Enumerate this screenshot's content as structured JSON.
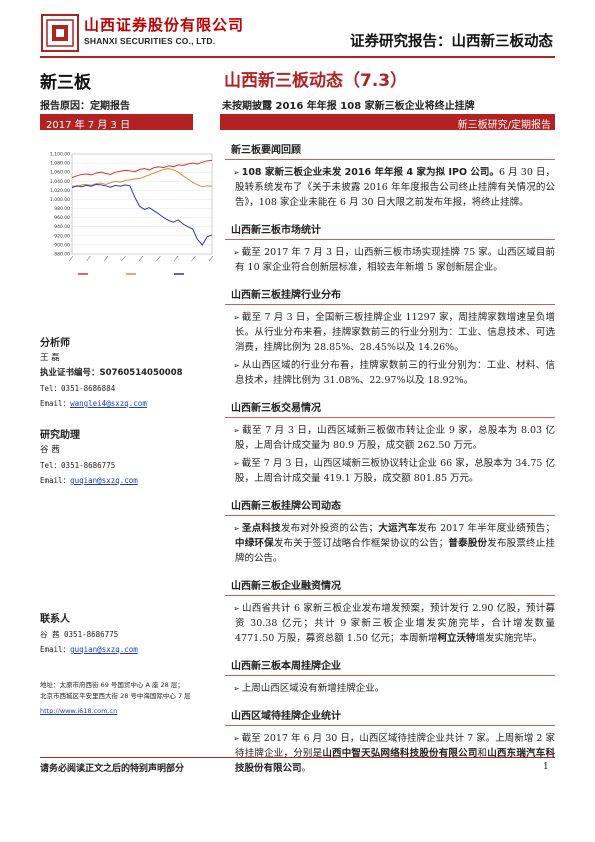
{
  "header": {
    "company_cn": "山西证券股份有限公司",
    "company_en": "SHANXI SECURITIES CO., LTD.",
    "report_series": "证券研究报告：山西新三板动态",
    "logo_icon": "company-seal-icon",
    "brand_color": "#b22222"
  },
  "left": {
    "section": "新三板",
    "reason": "报告原因：定期报告",
    "date": "2017 年 7 月 3 日",
    "analyst_title": "分析师",
    "analyst_name": "王 磊",
    "cert_label": "执业证书编号：",
    "cert_no": "S0760514050008",
    "analyst_tel": "Tel：0351-8686884",
    "analyst_email_label": "Email：",
    "analyst_email": "wanglei4@sxzq.com",
    "assistant_title": "研究助理",
    "assistant_name": "谷 茜",
    "assistant_tel": "Tel：0351-8686775",
    "assistant_email_label": "Email：",
    "assistant_email": "guqian@sxzq.com",
    "contact_title": "联系人",
    "contact_tel": "谷 茜 0351-8686775",
    "contact_email_label": "Email：",
    "contact_email": "guqian@sxzq.com",
    "address1": "地址：太原市府西街 69 号国贸中心 A 座 28 层；",
    "address2": "北京市西城区平安里西大街 28 号中海国际中心 7 层",
    "website": "http://www.i618.com.cn"
  },
  "chart_data": {
    "type": "line",
    "y_ticks": [
      "1,100.00",
      "1,080.00",
      "1,060.00",
      "1,040.00",
      "1,020.00",
      "1,000.00",
      "980.00",
      "960.00",
      "940.00",
      "920.00",
      "900.00",
      "880.00"
    ],
    "series": [
      {
        "color": "#e03030",
        "values": [
          1048,
          1052,
          1055,
          1056,
          1054,
          1058,
          1060,
          1057,
          1055,
          1060,
          1062,
          1064,
          1063,
          1061,
          1066,
          1068,
          1065,
          1070,
          1072,
          1070,
          1074,
          1072,
          1076,
          1075,
          1078,
          1080,
          1078,
          1082,
          1085,
          1086
        ]
      },
      {
        "color": "#e08a30",
        "values": [
          1030,
          1028,
          1032,
          1033,
          1031,
          1035,
          1036,
          1033,
          1037,
          1040,
          1038,
          1042,
          1043,
          1045,
          1046,
          1050,
          1054,
          1058,
          1062,
          1066,
          1068,
          1065,
          1060,
          1052,
          1045,
          1038,
          1032,
          1028,
          1030,
          1029
        ]
      },
      {
        "color": "#2233cc",
        "values": [
          1026,
          1030,
          1028,
          1031,
          1029,
          1033,
          1032,
          1030,
          1027,
          1031,
          1029,
          1032,
          1030,
          1005,
          985,
          978,
          982,
          975,
          968,
          960,
          954,
          950,
          955,
          946,
          940,
          935,
          912,
          900,
          918,
          922
        ]
      }
    ],
    "ylim": [
      880,
      1100
    ],
    "legend_labels": [
      "",
      "",
      ""
    ],
    "grid": true
  },
  "title": {
    "main": "山西新三板动态（7.3）",
    "sub": "未按期披露 2016 年年报   108 家新三板企业将终止挂牌",
    "category": "新三板研究/定期报告"
  },
  "sections": [
    {
      "heading": "新三板要闻回顾",
      "paras": [
        {
          "bold": "108 家新三板企业未发 2016 年年报 4 家为拟 IPO 公司。",
          "text": "6 月 30 日，股转系统发布了《关于未披露 2016 年年度报告公司终止挂牌有关情况的公告》，108 家企业未能在 6 月 30 日大限之前发布年报，将终止挂牌。"
        }
      ]
    },
    {
      "heading": "山西新三板市场统计",
      "paras": [
        {
          "text": "截至 2017 年 7 月 3 日，山西新三板市场实现挂牌 75 家。山西区域目前有 10 家企业符合创新层标准，相较去年新增 5 家创新层企业。"
        }
      ]
    },
    {
      "heading": "山西新三板挂牌行业分布",
      "paras": [
        {
          "text": "截至 7 月 3 日，全国新三板挂牌企业 11297 家，周挂牌家数增速呈负增长。从行业分布来看，挂牌家数前三的行业分别为：工业、信息技术、可选消费，挂牌比例为 28.85%、28.45%以及 14.26%。"
        },
        {
          "text": "从山西区域的行业分布看，挂牌家数前三的行业分别为：工业、材料、信息技术，挂牌比例为 31.08%、22.97%以及 18.92%。"
        }
      ]
    },
    {
      "heading": "山西新三板交易情况",
      "paras": [
        {
          "text": "截至 7 月 3 日，山西区域新三板做市转让企业 9 家，总股本为 8.03 亿股，上周合计成交量为 80.9 万股，成交额 262.50 万元。"
        },
        {
          "text": "截至 7 月 3 日，山西区域新三板协议转让企业 66 家，总股本为 34.75 亿股，上周合计成交量 419.1 万股，成交额 801.85 万元。"
        }
      ]
    },
    {
      "heading": "山西新三板挂牌公司动态",
      "paras": [
        {
          "segments": [
            {
              "b": true,
              "t": "圣点科技"
            },
            {
              "t": "发布对外投资的公告；"
            },
            {
              "b": true,
              "t": "大运汽车"
            },
            {
              "t": "发布 2017 年半年度业绩预告；"
            },
            {
              "b": true,
              "t": "中绿环保"
            },
            {
              "t": "发布关于签订战略合作框架协议的公告；"
            },
            {
              "b": true,
              "t": "普泰股份"
            },
            {
              "t": "发布股票终止挂牌的公告。"
            }
          ]
        }
      ]
    },
    {
      "heading": "山西新三板企业融资情况",
      "paras": [
        {
          "segments": [
            {
              "t": "山西省共计 6 家新三板企业发布增发预案，预计发行 2.90 亿股，预计募资 30.38 亿元；共计 9 家新三板企业增发实施完毕，合计增发数量 4771.50 万股，募资总额 1.50 亿元；本周新增"
            },
            {
              "b": true,
              "t": "柯立沃特"
            },
            {
              "t": "增发实施完毕。"
            }
          ]
        }
      ]
    },
    {
      "heading": "山西新三板本周挂牌企业",
      "paras": [
        {
          "text": "上周山西区域没有新增挂牌企业。"
        }
      ]
    },
    {
      "heading": "山西区域待挂牌企业统计",
      "paras": [
        {
          "segments": [
            {
              "t": "截至 2017 年 6 月 30 日，山西区域待挂牌企业共计 7 家。上周新增 2 家待挂牌企业，分别是"
            },
            {
              "b": true,
              "t": "山西中智天弘网络科技股份有限公司"
            },
            {
              "t": "和"
            },
            {
              "b": true,
              "t": "山西东瑞汽车科技股份有限公司"
            },
            {
              "t": "。"
            }
          ]
        }
      ]
    }
  ],
  "footer": {
    "disclaimer": "请务必阅读正文之后的特别声明部分",
    "page": "1"
  }
}
